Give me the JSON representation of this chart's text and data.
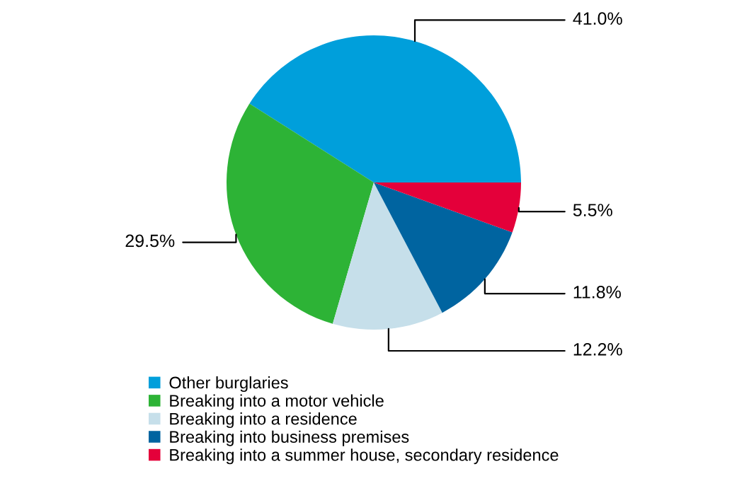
{
  "chart_data": {
    "type": "pie",
    "categories": [
      "Other burglaries",
      "Breaking into a motor vehicle",
      "Breaking into a residence",
      "Breaking into business premises",
      "Breaking into a summer house, secondary residence"
    ],
    "values": [
      41.0,
      29.5,
      12.2,
      11.8,
      5.5
    ],
    "value_labels": [
      "41.0%",
      "29.5%",
      "12.2%",
      "11.8%",
      "5.5%"
    ],
    "colors": [
      "#009fdb",
      "#2db336",
      "#c6dfea",
      "#0064a0",
      "#e4003a"
    ],
    "legend": "bottom"
  }
}
